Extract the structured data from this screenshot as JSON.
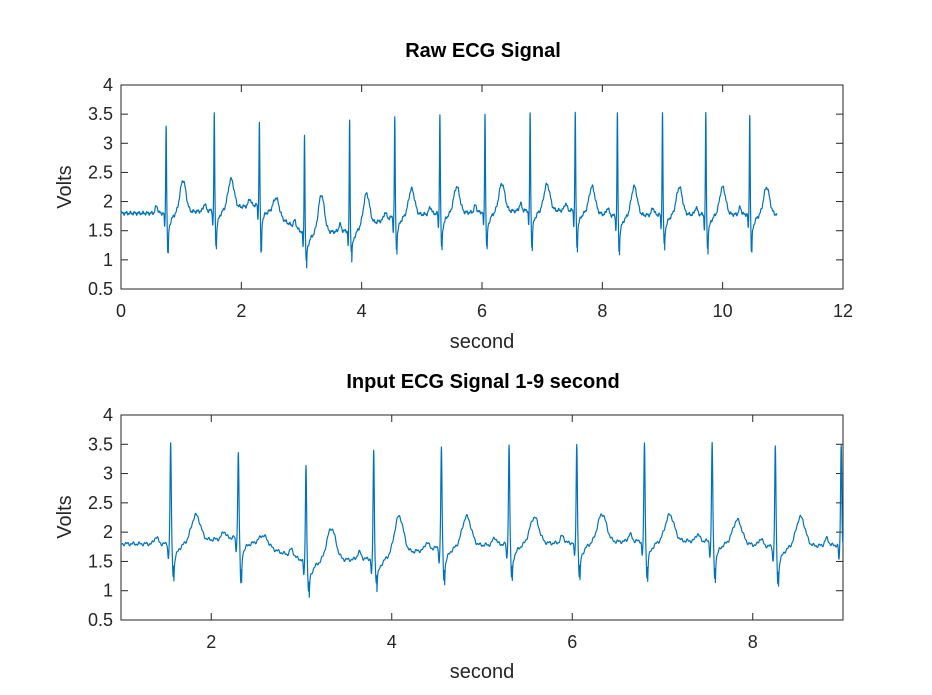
{
  "colors": {
    "trace": "#0072bd",
    "axes": "#262626",
    "background": "#ffffff"
  },
  "chart_data": [
    {
      "type": "line",
      "title": "Raw ECG Signal",
      "xlabel": "second",
      "ylabel": "Volts",
      "xlim": [
        0,
        12
      ],
      "ylim": [
        0.5,
        4
      ],
      "xticks": [
        0,
        2,
        4,
        6,
        8,
        10,
        12
      ],
      "xtick_labels": [
        "0",
        "2",
        "4",
        "6",
        "8",
        "10",
        "12"
      ],
      "yticks": [
        0.5,
        1,
        1.5,
        2,
        2.5,
        3,
        3.5,
        4
      ],
      "ytick_labels": [
        "0.5",
        "1",
        "1.5",
        "2",
        "2.5",
        "3",
        "3.5",
        "4"
      ],
      "grid": false,
      "series": [
        {
          "color": "#0072bd",
          "x_range": [
            0,
            10.9
          ],
          "beats": [
            {
              "t": 0.75,
              "peak": 3.3,
              "trough": 1.1,
              "baseline": 1.8,
              "t_wave": 2.35
            },
            {
              "t": 1.55,
              "peak": 3.5,
              "trough": 1.25,
              "baseline": 1.85,
              "t_wave": 2.35
            },
            {
              "t": 2.3,
              "peak": 3.35,
              "trough": 1.12,
              "baseline": 1.95,
              "t_wave": 2.25
            },
            {
              "t": 3.05,
              "peak": 3.15,
              "trough": 0.97,
              "baseline": 1.45,
              "t_wave": 2.1
            },
            {
              "t": 3.8,
              "peak": 3.4,
              "trough": 1.15,
              "baseline": 1.5,
              "t_wave": 2.05
            },
            {
              "t": 4.55,
              "peak": 3.45,
              "trough": 1.2,
              "baseline": 1.75,
              "t_wave": 2.2
            },
            {
              "t": 5.3,
              "peak": 3.5,
              "trough": 1.22,
              "baseline": 1.8,
              "t_wave": 2.25
            },
            {
              "t": 6.05,
              "peak": 3.5,
              "trough": 1.22,
              "baseline": 1.82,
              "t_wave": 2.3
            },
            {
              "t": 6.8,
              "peak": 3.5,
              "trough": 1.22,
              "baseline": 1.85,
              "t_wave": 2.3
            },
            {
              "t": 7.55,
              "peak": 3.52,
              "trough": 1.22,
              "baseline": 1.85,
              "t_wave": 2.3
            },
            {
              "t": 8.25,
              "peak": 3.5,
              "trough": 1.15,
              "baseline": 1.75,
              "t_wave": 2.25
            },
            {
              "t": 9.0,
              "peak": 3.52,
              "trough": 1.25,
              "baseline": 1.78,
              "t_wave": 2.25
            },
            {
              "t": 9.72,
              "peak": 3.5,
              "trough": 1.2,
              "baseline": 1.78,
              "t_wave": 2.25
            },
            {
              "t": 10.45,
              "peak": 3.5,
              "trough": 1.15,
              "baseline": 1.78,
              "t_wave": 2.25
            }
          ]
        }
      ]
    },
    {
      "type": "line",
      "title": "Input ECG Signal 1-9 second",
      "xlabel": "second",
      "ylabel": "Volts",
      "xlim": [
        1,
        9
      ],
      "ylim": [
        0.5,
        4
      ],
      "xticks": [
        2,
        4,
        6,
        8
      ],
      "xtick_labels": [
        "2",
        "4",
        "6",
        "8"
      ],
      "yticks": [
        0.5,
        1,
        1.5,
        2,
        2.5,
        3,
        3.5,
        4
      ],
      "ytick_labels": [
        "0.5",
        "1",
        "1.5",
        "2",
        "2.5",
        "3",
        "3.5",
        "4"
      ],
      "grid": false,
      "series": [
        {
          "color": "#0072bd",
          "x_range": [
            1,
            9
          ],
          "beats": [
            {
              "t": 1.55,
              "peak": 3.5,
              "trough": 1.25,
              "baseline": 1.8,
              "t_wave": 2.25
            },
            {
              "t": 2.3,
              "peak": 3.35,
              "trough": 1.12,
              "baseline": 1.92,
              "t_wave": 2.1
            },
            {
              "t": 3.05,
              "peak": 3.15,
              "trough": 0.97,
              "baseline": 1.5,
              "t_wave": 2.05
            },
            {
              "t": 3.8,
              "peak": 3.4,
              "trough": 1.15,
              "baseline": 1.55,
              "t_wave": 2.2
            },
            {
              "t": 4.55,
              "peak": 3.45,
              "trough": 1.2,
              "baseline": 1.75,
              "t_wave": 2.25
            },
            {
              "t": 5.3,
              "peak": 3.5,
              "trough": 1.22,
              "baseline": 1.8,
              "t_wave": 2.25
            },
            {
              "t": 6.05,
              "peak": 3.5,
              "trough": 1.22,
              "baseline": 1.82,
              "t_wave": 2.3
            },
            {
              "t": 6.8,
              "peak": 3.5,
              "trough": 1.22,
              "baseline": 1.85,
              "t_wave": 2.3
            },
            {
              "t": 7.55,
              "peak": 3.52,
              "trough": 1.22,
              "baseline": 1.85,
              "t_wave": 2.25
            },
            {
              "t": 8.25,
              "peak": 3.45,
              "trough": 1.13,
              "baseline": 1.75,
              "t_wave": 2.25
            },
            {
              "t": 8.98,
              "peak": 3.5,
              "trough": 1.8,
              "baseline": 1.78,
              "t_wave": 2.2
            }
          ]
        }
      ]
    }
  ]
}
